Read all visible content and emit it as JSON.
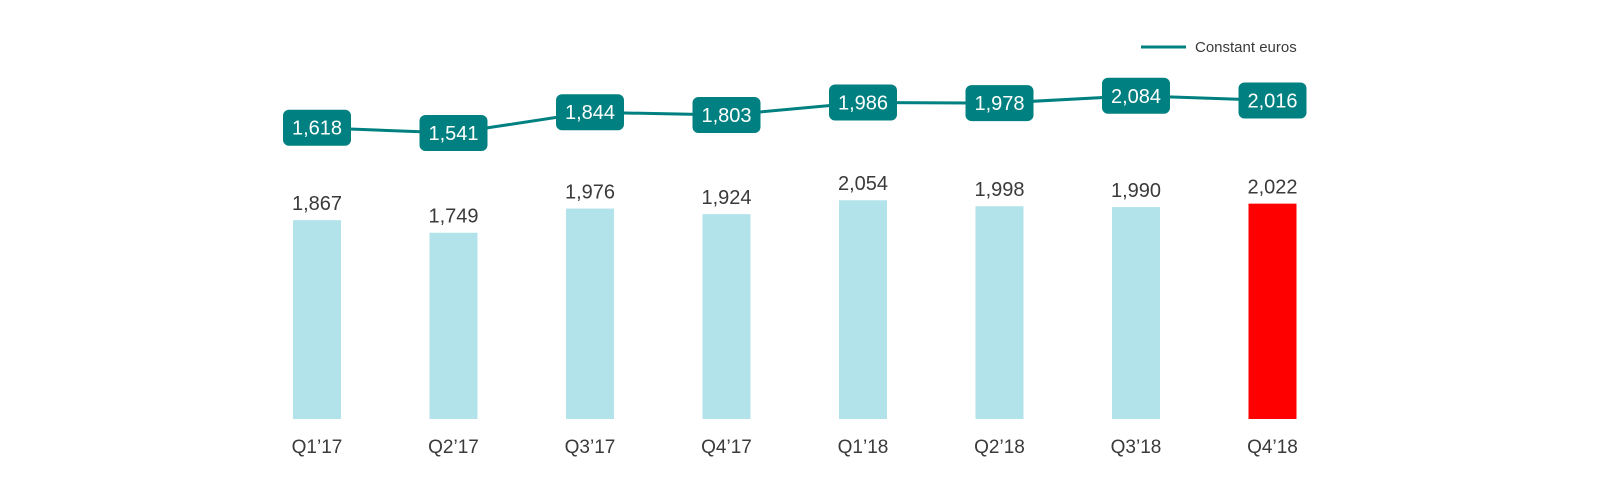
{
  "chart_data": {
    "type": "bar",
    "categories": [
      "Q1’17",
      "Q2’17",
      "Q3’17",
      "Q4’17",
      "Q1’18",
      "Q2’18",
      "Q3’18",
      "Q4’18"
    ],
    "series": [
      {
        "kind": "bar",
        "values": [
          1867,
          1749,
          1976,
          1924,
          2054,
          1998,
          1990,
          2022
        ],
        "labels": [
          "1,867",
          "1,749",
          "1,976",
          "1,924",
          "2,054",
          "1,998",
          "1,990",
          "2,022"
        ],
        "color": "#b3e3ea",
        "highlight_index": 7,
        "highlight_color": "#ff0000"
      },
      {
        "kind": "line",
        "name": "Constant euros",
        "values": [
          1618,
          1541,
          1844,
          1803,
          1986,
          1978,
          2084,
          2016
        ],
        "labels": [
          "1,618",
          "1,541",
          "1,844",
          "1,803",
          "1,986",
          "1,978",
          "2,084",
          "2,016"
        ],
        "color": "#008080"
      }
    ],
    "legend": {
      "position": "top-right",
      "entries": [
        "Constant euros"
      ]
    },
    "grid": false,
    "axes_visible": false
  }
}
